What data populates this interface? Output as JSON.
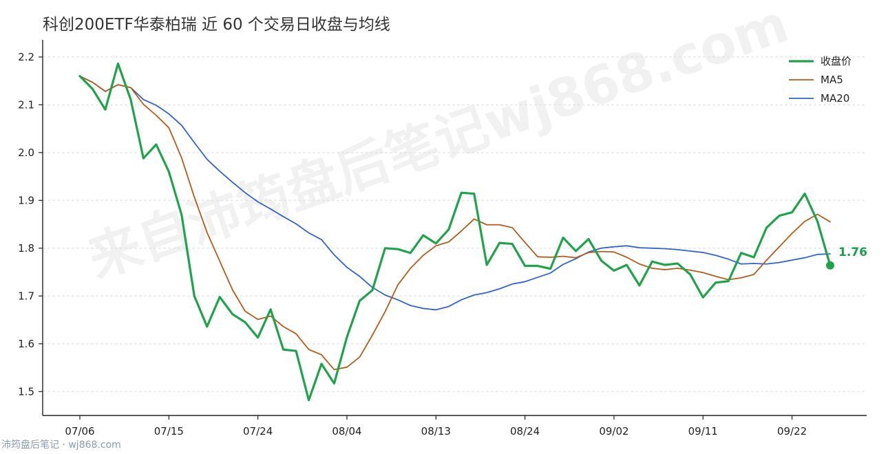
{
  "chart_data": {
    "type": "line",
    "title": "科创200ETF华泰柏瑞 近 60 个交易日收盘与均线",
    "watermark": "来自沛筠盘后笔记wj868.com",
    "footer": "沛筠盘后笔记 · wj868.com",
    "xlabel": "",
    "ylabel": "",
    "ylim": [
      1.45,
      2.23
    ],
    "yticks": [
      1.5,
      1.6,
      1.7,
      1.8,
      1.9,
      2.0,
      2.1,
      2.2
    ],
    "x_tick_labels": [
      "07/06",
      "07/15",
      "07/24",
      "08/04",
      "08/13",
      "08/24",
      "09/02",
      "09/11",
      "09/22"
    ],
    "x_tick_indices": [
      0,
      7,
      14,
      21,
      28,
      35,
      42,
      49,
      56
    ],
    "grid": "horizontal dashed",
    "legend_position": "top-right",
    "series": [
      {
        "name": "收盘价",
        "color": "#1fa34a",
        "values": [
          2.16,
          2.133,
          2.09,
          2.186,
          2.111,
          1.988,
          2.017,
          1.96,
          1.87,
          1.7,
          1.636,
          1.698,
          1.662,
          1.645,
          1.613,
          1.672,
          1.588,
          1.585,
          1.482,
          1.558,
          1.517,
          1.614,
          1.69,
          1.712,
          1.8,
          1.798,
          1.79,
          1.827,
          1.81,
          1.839,
          1.916,
          1.914,
          1.765,
          1.811,
          1.809,
          1.763,
          1.763,
          1.757,
          1.822,
          1.794,
          1.819,
          1.774,
          1.753,
          1.765,
          1.722,
          1.772,
          1.765,
          1.768,
          1.745,
          1.697,
          1.728,
          1.731,
          1.79,
          1.781,
          1.843,
          1.868,
          1.875,
          1.914,
          1.856,
          1.764
        ]
      },
      {
        "name": "MA5",
        "color": "#b85a1a",
        "values": [
          2.16,
          2.147,
          2.128,
          2.142,
          2.136,
          2.101,
          2.078,
          2.052,
          1.989,
          1.907,
          1.833,
          1.773,
          1.713,
          1.668,
          1.651,
          1.658,
          1.636,
          1.621,
          1.588,
          1.577,
          1.546,
          1.551,
          1.572,
          1.618,
          1.667,
          1.723,
          1.758,
          1.785,
          1.805,
          1.813,
          1.836,
          1.861,
          1.849,
          1.849,
          1.843,
          1.812,
          1.782,
          1.781,
          1.783,
          1.78,
          1.791,
          1.793,
          1.792,
          1.781,
          1.767,
          1.758,
          1.755,
          1.758,
          1.754,
          1.749,
          1.741,
          1.734,
          1.738,
          1.745,
          1.775,
          1.803,
          1.831,
          1.856,
          1.871,
          1.855
        ]
      },
      {
        "name": "MA20",
        "color": "#2e62d6",
        "values": [
          2.16,
          2.147,
          2.128,
          2.142,
          2.136,
          2.111,
          2.099,
          2.081,
          2.057,
          2.021,
          1.986,
          1.961,
          1.938,
          1.916,
          1.897,
          1.882,
          1.866,
          1.851,
          1.832,
          1.818,
          1.786,
          1.76,
          1.741,
          1.718,
          1.702,
          1.692,
          1.68,
          1.674,
          1.671,
          1.678,
          1.692,
          1.702,
          1.707,
          1.715,
          1.725,
          1.73,
          1.739,
          1.748,
          1.766,
          1.778,
          1.792,
          1.8,
          1.803,
          1.805,
          1.801,
          1.8,
          1.799,
          1.797,
          1.794,
          1.791,
          1.785,
          1.777,
          1.767,
          1.768,
          1.767,
          1.77,
          1.775,
          1.78,
          1.787,
          1.788
        ]
      }
    ],
    "last_point_label": "1.76"
  }
}
